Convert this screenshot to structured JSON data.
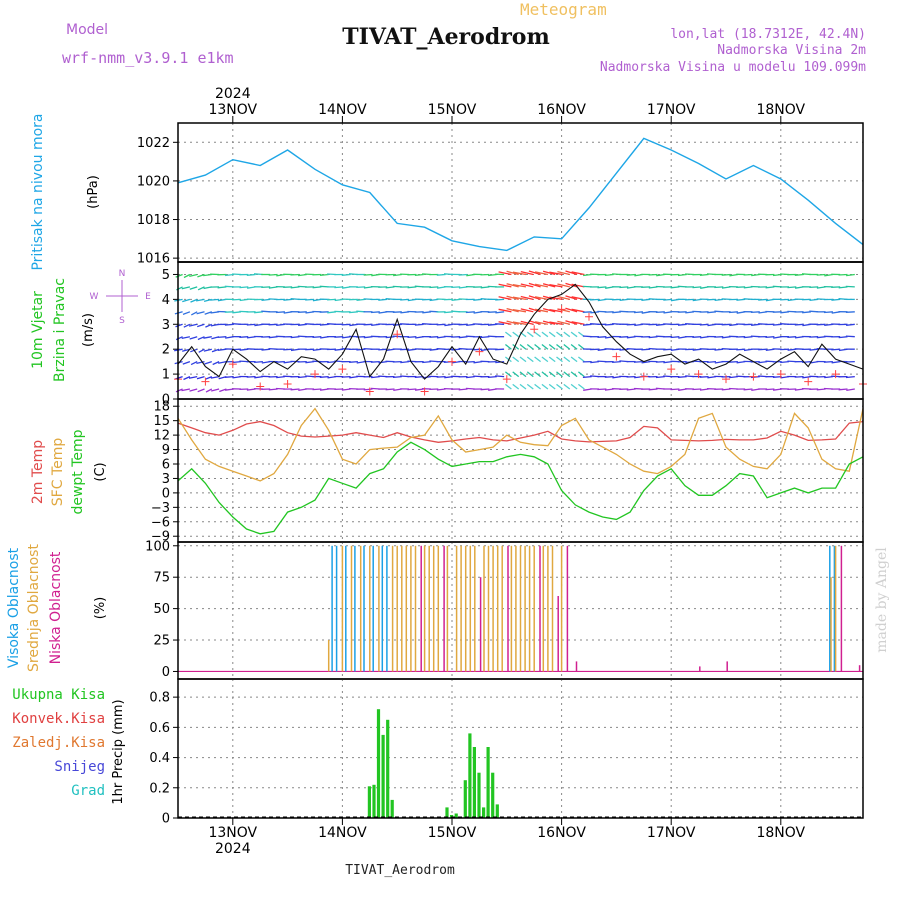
{
  "header": {
    "model_label": "Model",
    "model_name": "wrf-nmm_v3.9.1  e1km",
    "meteogram_label": "Meteogram",
    "title": "TIVAT_Aerodrom",
    "lonlat": "lon,lat (18.7312E, 42.4N)",
    "elevation": "Nadmorska Visina 2m",
    "model_elevation": "Nadmorska Visina u modelu 109.099m"
  },
  "footer": {
    "station": "TIVAT_Aerodrom",
    "watermark": "made by Angel"
  },
  "time_axis": {
    "year": "2024",
    "days": [
      "13NOV",
      "14NOV",
      "15NOV",
      "16NOV",
      "17NOV",
      "18NOV"
    ],
    "range_hours": [
      -12,
      138
    ]
  },
  "colors": {
    "pressure": "#1ea6e6",
    "t2m": "#e04c4c",
    "sfc": "#e0a840",
    "dewpt": "#22c522",
    "high_cloud": "#1aa0e6",
    "mid_cloud": "#e0a840",
    "low_cloud": "#d02090",
    "precip": "#22c522",
    "wind_speed": "#111111",
    "gust": "#ff4040",
    "grid": "#888888",
    "purple": "#b060d0"
  },
  "chart_data": [
    {
      "type": "line",
      "panel": "pressure",
      "ylabel": "Pritisak na nivou mora",
      "unit": "(hPa)",
      "ylim": [
        1015.8,
        1023.0
      ],
      "yticks": [
        1016,
        1018,
        1020,
        1022
      ],
      "grid": true,
      "x": [
        -12,
        -6,
        0,
        6,
        12,
        18,
        24,
        30,
        36,
        42,
        48,
        54,
        60,
        66,
        72,
        78,
        84,
        90,
        96,
        102,
        108,
        114,
        120,
        126,
        132,
        138
      ],
      "series": [
        {
          "values": [
            1019.9,
            1020.3,
            1021.1,
            1020.8,
            1021.6,
            1020.6,
            1019.8,
            1019.4,
            1017.8,
            1017.6,
            1016.9,
            1016.6,
            1016.4,
            1017.1,
            1017.0,
            1018.6,
            1020.4,
            1022.2,
            1021.6,
            1020.9,
            1020.1,
            1020.8,
            1020.1,
            1019.0,
            1017.8,
            1016.7
          ]
        }
      ]
    },
    {
      "type": "line",
      "panel": "wind",
      "ylabel": [
        "10m Vjetar",
        "Brzina i Pravac"
      ],
      "unit": "(m/s)",
      "compass": [
        "N",
        "E",
        "S",
        "W"
      ],
      "ylim": [
        0,
        5.5
      ],
      "yticks": [
        0,
        1,
        2,
        3,
        4,
        5
      ],
      "grid": true,
      "x": [
        -12,
        -9,
        -6,
        -3,
        0,
        3,
        6,
        9,
        12,
        15,
        18,
        21,
        24,
        27,
        30,
        33,
        36,
        39,
        42,
        45,
        48,
        51,
        54,
        57,
        60,
        63,
        66,
        69,
        72,
        75,
        78,
        81,
        84,
        87,
        90,
        93,
        96,
        99,
        102,
        105,
        108,
        111,
        114,
        117,
        120,
        123,
        126,
        129,
        132,
        135,
        138
      ],
      "series": [
        {
          "name": "speed",
          "values": [
            1.4,
            2.1,
            1.3,
            0.9,
            2.0,
            1.6,
            1.1,
            1.5,
            1.2,
            1.7,
            1.6,
            1.2,
            1.8,
            2.8,
            0.9,
            1.6,
            3.2,
            1.5,
            0.8,
            1.3,
            2.1,
            1.4,
            2.5,
            1.6,
            1.4,
            2.6,
            3.4,
            4.0,
            4.2,
            4.6,
            3.9,
            2.9,
            2.3,
            1.8,
            1.5,
            1.7,
            1.8,
            1.4,
            1.6,
            1.2,
            1.4,
            1.8,
            1.5,
            1.2,
            1.6,
            1.9,
            1.3,
            2.2,
            1.6,
            1.4,
            1.2
          ]
        }
      ]
    },
    {
      "type": "line",
      "panel": "temperature",
      "ylabel": [
        "2m Temp",
        "SFC Temp",
        "dewpt Temp"
      ],
      "unit": "(C)",
      "ylim": [
        -10.2,
        19.5
      ],
      "yticks": [
        -9,
        -6,
        -3,
        0,
        3,
        6,
        9,
        12,
        15,
        18
      ],
      "grid": true,
      "x": [
        -12,
        -9,
        -6,
        -3,
        0,
        3,
        6,
        9,
        12,
        15,
        18,
        21,
        24,
        27,
        30,
        33,
        36,
        39,
        42,
        45,
        48,
        51,
        54,
        57,
        60,
        63,
        66,
        69,
        72,
        75,
        78,
        81,
        84,
        87,
        90,
        93,
        96,
        99,
        102,
        105,
        108,
        111,
        114,
        117,
        120,
        123,
        126,
        129,
        132,
        135,
        138
      ],
      "series": [
        {
          "name": "2m Temp",
          "values": [
            14.5,
            13.5,
            12.5,
            12.0,
            13.0,
            14.3,
            14.8,
            14.0,
            12.5,
            11.8,
            11.6,
            11.8,
            12.0,
            12.5,
            12.0,
            11.5,
            12.5,
            11.6,
            11.0,
            10.5,
            10.8,
            11.2,
            11.5,
            11.0,
            10.8,
            11.4,
            12.0,
            12.8,
            11.2,
            10.8,
            10.6,
            10.7,
            10.8,
            11.5,
            13.8,
            13.5,
            11.0,
            10.9,
            10.8,
            10.9,
            11.1,
            11.0,
            11.0,
            11.4,
            12.8,
            12.0,
            10.9,
            11.0,
            11.2,
            14.5,
            14.8
          ]
        },
        {
          "name": "SFC Temp",
          "values": [
            15.5,
            11.0,
            7.0,
            5.5,
            4.5,
            3.5,
            2.5,
            4.0,
            8.0,
            14.0,
            17.5,
            13.0,
            7.0,
            6.0,
            9.0,
            9.3,
            9.5,
            11.5,
            12.0,
            16.0,
            11.0,
            8.5,
            9.0,
            9.5,
            12.0,
            10.5,
            10.0,
            9.8,
            14.0,
            15.5,
            11.0,
            9.5,
            8.0,
            6.0,
            4.5,
            4.0,
            5.5,
            8.0,
            15.5,
            16.5,
            9.5,
            7.0,
            5.5,
            5.0,
            8.0,
            16.5,
            13.5,
            7.0,
            5.0,
            4.5,
            17.5
          ]
        },
        {
          "name": "dewpt Temp",
          "values": [
            2.5,
            5.0,
            2.0,
            -2.0,
            -5.0,
            -7.5,
            -8.5,
            -8.0,
            -4.0,
            -3.0,
            -1.5,
            3.0,
            2.0,
            1.0,
            4.0,
            5.0,
            8.5,
            10.5,
            9.0,
            7.0,
            5.5,
            6.0,
            6.5,
            6.5,
            7.5,
            8.0,
            7.5,
            6.0,
            0.5,
            -2.5,
            -4.0,
            -5.0,
            -5.5,
            -4.0,
            0.5,
            3.5,
            5.0,
            1.5,
            -0.5,
            -0.5,
            1.5,
            4.0,
            3.5,
            -1.0,
            0.0,
            1.0,
            0.0,
            1.0,
            1.0,
            6.0,
            7.5
          ]
        }
      ]
    },
    {
      "type": "bar",
      "panel": "cloud",
      "ylabel": [
        "Visoka Oblacnost",
        "Srednja Oblacnost",
        "Niska Oblacnost"
      ],
      "unit": "(%)",
      "ylim": [
        -6,
        103
      ],
      "yticks": [
        0,
        25,
        50,
        75,
        100
      ],
      "grid": true,
      "x": [
        21,
        21.5,
        22,
        23,
        24,
        25,
        26,
        27,
        28,
        29,
        30,
        31,
        32,
        33,
        34,
        35,
        36,
        37,
        38,
        39,
        40,
        41,
        42,
        43,
        44,
        45,
        46,
        47,
        48,
        49,
        50,
        51,
        52,
        53,
        54,
        55,
        56,
        57,
        58,
        59,
        60,
        61,
        62,
        63,
        64,
        65,
        66,
        67,
        68,
        69,
        70,
        71,
        72,
        73,
        75,
        102,
        108,
        131,
        132,
        133,
        137
      ],
      "series": [
        {
          "name": "Visoka Oblacnost",
          "values": [
            0,
            0,
            100,
            100,
            0,
            100,
            0,
            100,
            0,
            100,
            0,
            100,
            0,
            100,
            100,
            0,
            0,
            0,
            0,
            0,
            0,
            0,
            0,
            0,
            0,
            0,
            0,
            0,
            0,
            0,
            0,
            0,
            0,
            0,
            0,
            0,
            0,
            0,
            0,
            0,
            0,
            0,
            0,
            0,
            0,
            0,
            0,
            0,
            0,
            0,
            0,
            0,
            0,
            0,
            0,
            0,
            0,
            100,
            100,
            0,
            0
          ]
        },
        {
          "name": "Srednja Oblacnost",
          "values": [
            25,
            0,
            0,
            0,
            100,
            0,
            100,
            0,
            100,
            0,
            100,
            0,
            100,
            0,
            0,
            100,
            100,
            100,
            100,
            100,
            100,
            0,
            100,
            100,
            100,
            100,
            0,
            100,
            0,
            100,
            100,
            100,
            100,
            100,
            0,
            100,
            100,
            100,
            100,
            100,
            0,
            100,
            100,
            100,
            100,
            100,
            100,
            0,
            100,
            100,
            100,
            0,
            100,
            0,
            0,
            0,
            0,
            75,
            100,
            0,
            0
          ]
        },
        {
          "name": "Niska Oblacnost",
          "values": [
            0,
            0,
            0,
            0,
            0,
            0,
            0,
            0,
            0,
            0,
            0,
            0,
            0,
            0,
            0,
            0,
            0,
            0,
            0,
            0,
            0,
            100,
            0,
            0,
            0,
            0,
            100,
            0,
            0,
            0,
            0,
            0,
            0,
            0,
            75,
            0,
            0,
            0,
            0,
            0,
            100,
            0,
            0,
            0,
            0,
            0,
            0,
            100,
            0,
            0,
            0,
            60,
            0,
            100,
            8,
            4,
            8,
            0,
            0,
            100,
            5
          ]
        }
      ]
    },
    {
      "type": "bar",
      "panel": "precip",
      "ylabel": "1hr Precip (mm)",
      "legend": [
        "Ukupna Kisa",
        "Konvek.Kisa",
        "Zaledj.Kisa",
        "Snijeg",
        "Grad"
      ],
      "legend_colors": [
        "#22c522",
        "#e04040",
        "#e07830",
        "#4848d8",
        "#20c0c0"
      ],
      "ylim": [
        0,
        0.92
      ],
      "yticks": [
        0,
        0.2,
        0.4,
        0.6,
        0.8
      ],
      "grid": true,
      "x": [
        30,
        31,
        32,
        33,
        34,
        35,
        36,
        47,
        48,
        49,
        51,
        52,
        53,
        54,
        55,
        56,
        57,
        58
      ],
      "series": [
        {
          "name": "Ukupna Kisa",
          "values": [
            0.21,
            0.22,
            0.72,
            0.55,
            0.65,
            0.12,
            0.0,
            0.07,
            0.02,
            0.03,
            0.25,
            0.56,
            0.47,
            0.3,
            0.07,
            0.47,
            0.3,
            0.09
          ]
        }
      ]
    }
  ]
}
